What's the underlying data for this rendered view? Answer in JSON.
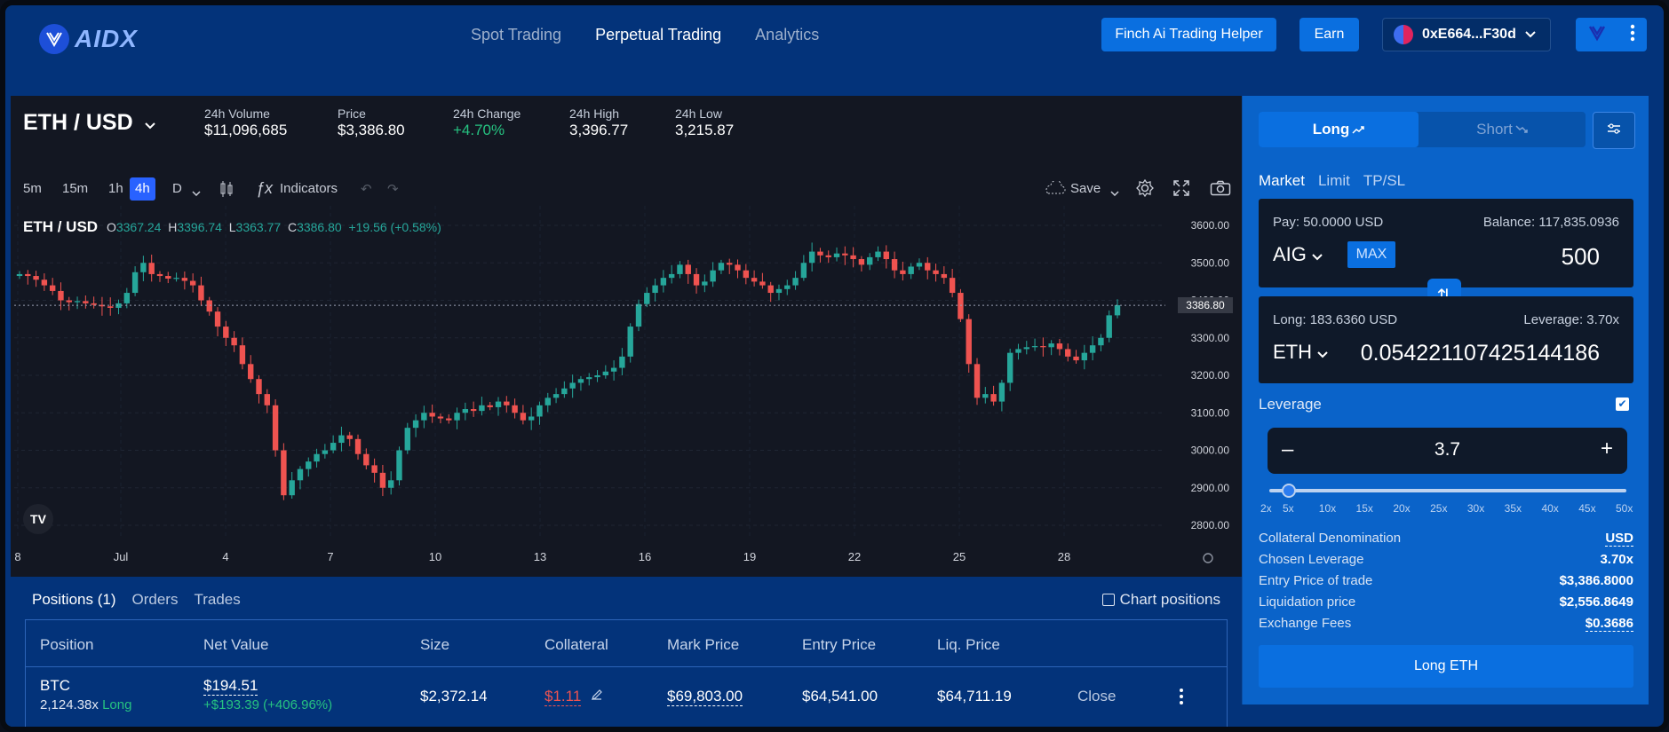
{
  "brand": {
    "logo_text": "AIDX"
  },
  "nav": {
    "items": [
      {
        "label": "Spot Trading",
        "active": false
      },
      {
        "label": "Perpetual Trading",
        "active": true
      },
      {
        "label": "Analytics",
        "active": false
      }
    ]
  },
  "header": {
    "helper_label": "Finch Ai Trading Helper",
    "earn_label": "Earn",
    "wallet_address": "0xE664...F30d"
  },
  "market": {
    "pair": "ETH / USD",
    "stats": [
      {
        "label": "24h Volume",
        "value": "$11,096,685"
      },
      {
        "label": "Price",
        "value": "$3,386.80"
      },
      {
        "label": "24h Change",
        "value": "+4.70%"
      },
      {
        "label": "24h High",
        "value": "3,396.77"
      },
      {
        "label": "24h Low",
        "value": "3,215.87"
      }
    ]
  },
  "chart_toolbar": {
    "timeframes": [
      "5m",
      "15m",
      "1h",
      "4h",
      "D"
    ],
    "active_timeframe": "4h",
    "indicators_label": "Indicators",
    "save_label": "Save"
  },
  "chart_legend": {
    "symbol": "ETH / USD",
    "o_label": "O",
    "o_val": "3367.24",
    "h_label": "H",
    "h_val": "3396.74",
    "l_label": "L",
    "l_val": "3363.77",
    "c_label": "C",
    "c_val": "3386.80",
    "change": "+19.56 (+0.58%)"
  },
  "chart_data": {
    "type": "candlestick",
    "y_ticks": [
      "3600.00",
      "3500.00",
      "3400.00",
      "3300.00",
      "3200.00",
      "3100.00",
      "3000.00",
      "2900.00",
      "2800.00"
    ],
    "y_range": [
      2780,
      3620
    ],
    "last_price": "3386.80",
    "x_ticks": [
      "8",
      "Jul",
      "4",
      "7",
      "10",
      "13",
      "16",
      "19",
      "22",
      "25",
      "28"
    ],
    "close_series": [
      3470,
      3465,
      3455,
      3440,
      3425,
      3400,
      3395,
      3398,
      3392,
      3388,
      3384,
      3380,
      3392,
      3420,
      3475,
      3500,
      3470,
      3465,
      3458,
      3460,
      3452,
      3440,
      3400,
      3370,
      3330,
      3300,
      3280,
      3230,
      3190,
      3150,
      3120,
      3000,
      2880,
      2920,
      2950,
      2970,
      2990,
      3000,
      3020,
      3040,
      3030,
      2990,
      2960,
      2940,
      2900,
      2920,
      3000,
      3060,
      3080,
      3100,
      3090,
      3085,
      3080,
      3100,
      3110,
      3105,
      3120,
      3115,
      3130,
      3120,
      3100,
      3080,
      3090,
      3120,
      3140,
      3150,
      3165,
      3180,
      3190,
      3195,
      3200,
      3210,
      3220,
      3250,
      3330,
      3390,
      3420,
      3440,
      3460,
      3470,
      3495,
      3470,
      3440,
      3450,
      3480,
      3500,
      3495,
      3480,
      3460,
      3450,
      3440,
      3420,
      3430,
      3440,
      3460,
      3500,
      3530,
      3520,
      3515,
      3525,
      3520,
      3510,
      3495,
      3515,
      3530,
      3510,
      3480,
      3470,
      3490,
      3500,
      3480,
      3470,
      3460,
      3420,
      3350,
      3230,
      3140,
      3150,
      3130,
      3180,
      3260,
      3270,
      3275,
      3278,
      3275,
      3285,
      3270,
      3250,
      3240,
      3260,
      3280,
      3300,
      3360,
      3387
    ]
  },
  "positions": {
    "tabs": [
      "Positions (1)",
      "Orders",
      "Trades"
    ],
    "chart_positions_label": "Chart positions",
    "headers": [
      "Position",
      "Net Value",
      "Size",
      "Collateral",
      "Mark Price",
      "Entry Price",
      "Liq. Price"
    ],
    "row": {
      "asset": "BTC",
      "leverage": "2,124.38x",
      "side": "Long",
      "net_value": "$194.51",
      "pnl": "+$193.39 (+406.96%)",
      "size": "$2,372.14",
      "collateral": "$1.11",
      "mark_price": "$69,803.00",
      "entry_price": "$64,541.00",
      "liq_price": "$64,711.19",
      "close_label": "Close"
    }
  },
  "order": {
    "long_label": "Long",
    "short_label": "Short",
    "types": [
      "Market",
      "Limit",
      "TP/SL"
    ],
    "pay_label": "Pay: 50.0000 USD",
    "balance_label": "Balance: 117,835.0936",
    "pay_token": "AIG",
    "max_label": "MAX",
    "pay_amount": "500",
    "long_amount_label": "Long: 183.6360 USD",
    "leverage_label_small": "Leverage: 3.70x",
    "receive_token": "ETH",
    "receive_amount": "0.054221107425144186",
    "leverage_title": "Leverage",
    "leverage_value": "3.7",
    "leverage_fraction": 0.035,
    "slider_ticks": [
      "2x",
      "5x",
      "10x",
      "15x",
      "20x",
      "25x",
      "30x",
      "35x",
      "40x",
      "45x",
      "50x"
    ],
    "details": [
      {
        "label": "Collateral Denomination",
        "value": "USD"
      },
      {
        "label": "Chosen Leverage",
        "value": "3.70x"
      },
      {
        "label": "Entry Price of trade",
        "value": "$3,386.8000"
      },
      {
        "label": "Liquidation price",
        "value": "$2,556.8649"
      },
      {
        "label": "Exchange Fees",
        "value": "$0.3686"
      }
    ],
    "cta_label": "Long ETH"
  },
  "colors": {
    "up": "#26a69a",
    "down": "#ef5350",
    "accent": "#0a6fe0",
    "positive_text": "#26c281"
  }
}
